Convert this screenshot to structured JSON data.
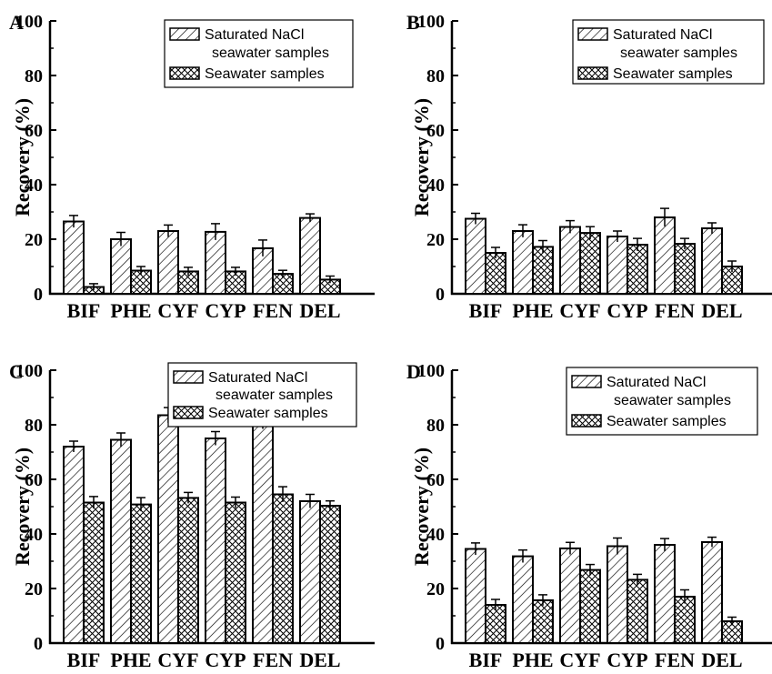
{
  "legend": {
    "series_1": "Saturated NaCl",
    "series_1_line2": "seawater samples",
    "series_2": "Seawater samples"
  },
  "chart_data": [
    {
      "panel": "A",
      "type": "bar",
      "ylabel": "Recovery (%)",
      "ylim": [
        0,
        100
      ],
      "yticks": [
        0,
        20,
        40,
        60,
        80,
        100
      ],
      "categories": [
        "BIF",
        "PHE",
        "CYF",
        "CYP",
        "FEN",
        "DEL"
      ],
      "series": [
        {
          "name": "Saturated NaCl seawater samples",
          "pattern": "diagonal",
          "values": [
            26.5,
            20,
            23,
            22.7,
            16.7,
            27.8
          ],
          "errors": [
            2.2,
            2.5,
            2.2,
            3,
            3,
            1.5
          ]
        },
        {
          "name": "Seawater samples",
          "pattern": "crosshatch",
          "values": [
            2.5,
            8.5,
            8.2,
            8.2,
            7.3,
            5.2
          ],
          "errors": [
            1.2,
            1.5,
            1.5,
            1.5,
            1.3,
            1.3
          ]
        }
      ],
      "legend_position": "top-right"
    },
    {
      "panel": "B",
      "type": "bar",
      "ylabel": "Recovery (%)",
      "ylim": [
        0,
        100
      ],
      "yticks": [
        0,
        20,
        40,
        60,
        80,
        100
      ],
      "categories": [
        "BIF",
        "PHE",
        "CYF",
        "CYP",
        "FEN",
        "DEL"
      ],
      "series": [
        {
          "name": "Saturated NaCl seawater samples",
          "pattern": "diagonal",
          "values": [
            27.5,
            23,
            24.5,
            21,
            28,
            24
          ],
          "errors": [
            2,
            2.3,
            2.3,
            2,
            3.3,
            2
          ]
        },
        {
          "name": "Seawater samples",
          "pattern": "crosshatch",
          "values": [
            15,
            17.2,
            22.3,
            18,
            18.3,
            10
          ],
          "errors": [
            2,
            2.3,
            2.3,
            2.3,
            2,
            2
          ]
        }
      ],
      "legend_position": "top-right"
    },
    {
      "panel": "C",
      "type": "bar",
      "ylabel": "Recovery (%)",
      "ylim": [
        0,
        100
      ],
      "yticks": [
        0,
        20,
        40,
        60,
        80,
        100
      ],
      "categories": [
        "BIF",
        "PHE",
        "CYF",
        "CYP",
        "FEN",
        "DEL"
      ],
      "series": [
        {
          "name": "Saturated NaCl seawater samples",
          "pattern": "diagonal",
          "values": [
            72,
            74.5,
            83.5,
            75,
            81.5,
            52
          ],
          "errors": [
            2,
            2.5,
            2.8,
            2.5,
            3,
            2.5
          ]
        },
        {
          "name": "Seawater samples",
          "pattern": "crosshatch",
          "values": [
            51.5,
            50.8,
            53.2,
            51.5,
            54.5,
            50.3
          ],
          "errors": [
            2.2,
            2.5,
            2,
            2,
            2.8,
            1.8
          ]
        }
      ],
      "legend_position": "top-right"
    },
    {
      "panel": "D",
      "type": "bar",
      "ylabel": "Recovery (%)",
      "ylim": [
        0,
        100
      ],
      "yticks": [
        0,
        20,
        40,
        60,
        80,
        100
      ],
      "categories": [
        "BIF",
        "PHE",
        "CYF",
        "CYP",
        "FEN",
        "DEL"
      ],
      "series": [
        {
          "name": "Saturated NaCl seawater samples",
          "pattern": "diagonal",
          "values": [
            34.5,
            31.8,
            34.7,
            35.5,
            36,
            37
          ],
          "errors": [
            2.2,
            2.3,
            2.2,
            3,
            2.3,
            1.8
          ]
        },
        {
          "name": "Seawater samples",
          "pattern": "crosshatch",
          "values": [
            14,
            15.7,
            26.8,
            23.2,
            17,
            8
          ],
          "errors": [
            2,
            2,
            2,
            2,
            2.5,
            1.5
          ]
        }
      ],
      "legend_position": "top-right"
    }
  ]
}
